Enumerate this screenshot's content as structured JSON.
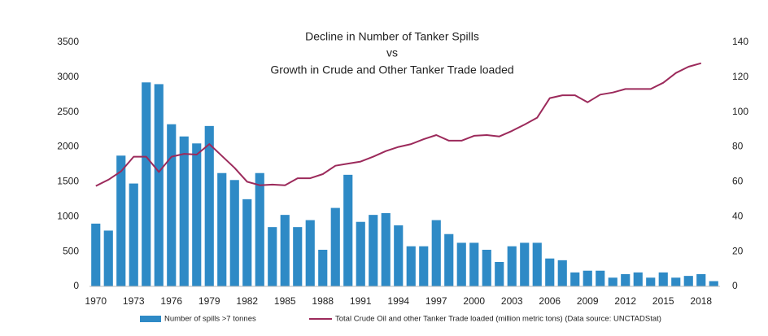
{
  "chart_data": {
    "type": "combo",
    "title": [
      "Decline in Number of Tanker Spills",
      "vs",
      "Growth in Crude and Other Tanker Trade loaded"
    ],
    "categories": [
      "1970",
      null,
      null,
      "1973",
      null,
      null,
      "1976",
      null,
      null,
      "1979",
      null,
      null,
      "1982",
      null,
      null,
      "1985",
      null,
      null,
      "1988",
      null,
      null,
      "1991",
      null,
      null,
      "1994",
      null,
      null,
      "1997",
      null,
      null,
      "2000",
      null,
      null,
      "2003",
      null,
      null,
      "2006",
      null,
      null,
      "2009",
      null,
      null,
      "2012",
      null,
      null,
      "2015",
      null,
      null,
      "2018",
      null
    ],
    "series": [
      {
        "name": "Number of spills >7 tonnes",
        "type": "bar",
        "axis": "y2",
        "color": "#2e8ac6",
        "values": [
          36,
          32,
          75,
          59,
          117,
          116,
          93,
          86,
          82,
          92,
          65,
          61,
          50,
          65,
          34,
          41,
          34,
          38,
          21,
          45,
          64,
          37,
          41,
          42,
          35,
          23,
          23,
          38,
          30,
          25,
          25,
          21,
          14,
          23,
          25,
          25,
          16,
          15,
          8,
          9,
          9,
          5,
          7,
          8,
          5,
          8,
          5,
          6,
          7,
          3
        ]
      },
      {
        "name": "Total Crude Oil and other Tanker Trade loaded (million metric tons) (Data source: UNCTADStat)",
        "type": "line",
        "axis": "y",
        "color": "#9c2a5b",
        "values": [
          1440,
          1530,
          1650,
          1860,
          1860,
          1640,
          1860,
          1900,
          1890,
          2040,
          1870,
          1700,
          1500,
          1450,
          1460,
          1450,
          1550,
          1550,
          1610,
          1730,
          1760,
          1790,
          1860,
          1940,
          2000,
          2040,
          2110,
          2170,
          2090,
          2090,
          2160,
          2170,
          2150,
          2230,
          2320,
          2420,
          2700,
          2740,
          2740,
          2640,
          2750,
          2780,
          2830,
          2830,
          2830,
          2920,
          3060,
          3150,
          3200,
          null
        ]
      }
    ],
    "ylim": [
      0,
      3500
    ],
    "yticks": [
      0,
      500,
      1000,
      1500,
      2000,
      2500,
      3000,
      3500
    ],
    "y2lim": [
      0,
      140
    ],
    "y2ticks": [
      0,
      20,
      40,
      60,
      80,
      100,
      120,
      140
    ],
    "grid": false,
    "legend": "bottom"
  }
}
